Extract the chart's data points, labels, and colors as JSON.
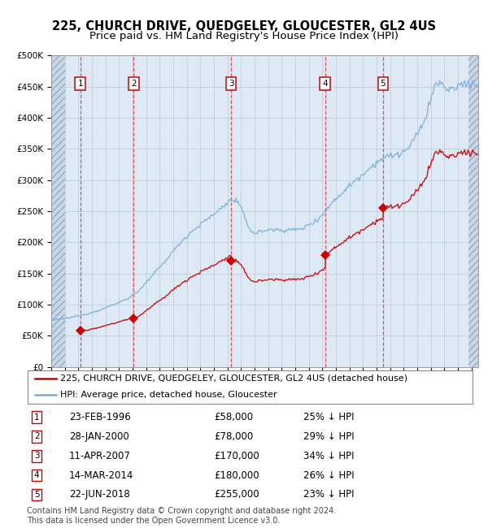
{
  "title": "225, CHURCH DRIVE, QUEDGELEY, GLOUCESTER, GL2 4US",
  "subtitle": "Price paid vs. HM Land Registry's House Price Index (HPI)",
  "ylim": [
    0,
    500000
  ],
  "xlim_start": 1994.0,
  "xlim_end": 2025.5,
  "ytick_labels": [
    "£0",
    "£50K",
    "£100K",
    "£150K",
    "£200K",
    "£250K",
    "£300K",
    "£350K",
    "£400K",
    "£450K",
    "£500K"
  ],
  "ytick_values": [
    0,
    50000,
    100000,
    150000,
    200000,
    250000,
    300000,
    350000,
    400000,
    450000,
    500000
  ],
  "sale_dates": [
    1996.14,
    2000.08,
    2007.27,
    2014.2,
    2018.47
  ],
  "sale_prices": [
    58000,
    78000,
    170000,
    180000,
    255000
  ],
  "sale_labels": [
    "1",
    "2",
    "3",
    "4",
    "5"
  ],
  "sale_info": [
    {
      "label": "1",
      "date": "23-FEB-1996",
      "price": "£58,000",
      "hpi": "25% ↓ HPI"
    },
    {
      "label": "2",
      "date": "28-JAN-2000",
      "price": "£78,000",
      "hpi": "29% ↓ HPI"
    },
    {
      "label": "3",
      "date": "11-APR-2007",
      "price": "£170,000",
      "hpi": "34% ↓ HPI"
    },
    {
      "label": "4",
      "date": "14-MAR-2014",
      "price": "£180,000",
      "hpi": "26% ↓ HPI"
    },
    {
      "label": "5",
      "date": "22-JUN-2018",
      "price": "£255,000",
      "hpi": "23% ↓ HPI"
    }
  ],
  "red_line_color": "#cc0000",
  "blue_line_color": "#7aaed6",
  "sale_marker_color": "#cc0000",
  "vline_color": "#ee3333",
  "background_color": "#ddeaf5",
  "grid_color": "#b8cad8",
  "legend_line1": "225, CHURCH DRIVE, QUEDGELEY, GLOUCESTER, GL2 4US (detached house)",
  "legend_line2": "HPI: Average price, detached house, Gloucester",
  "footer": "Contains HM Land Registry data © Crown copyright and database right 2024.\nThis data is licensed under the Open Government Licence v3.0.",
  "title_fontsize": 10.5,
  "subtitle_fontsize": 9.5,
  "tick_fontsize": 7.5,
  "legend_fontsize": 8,
  "table_fontsize": 8.5,
  "footer_fontsize": 7
}
